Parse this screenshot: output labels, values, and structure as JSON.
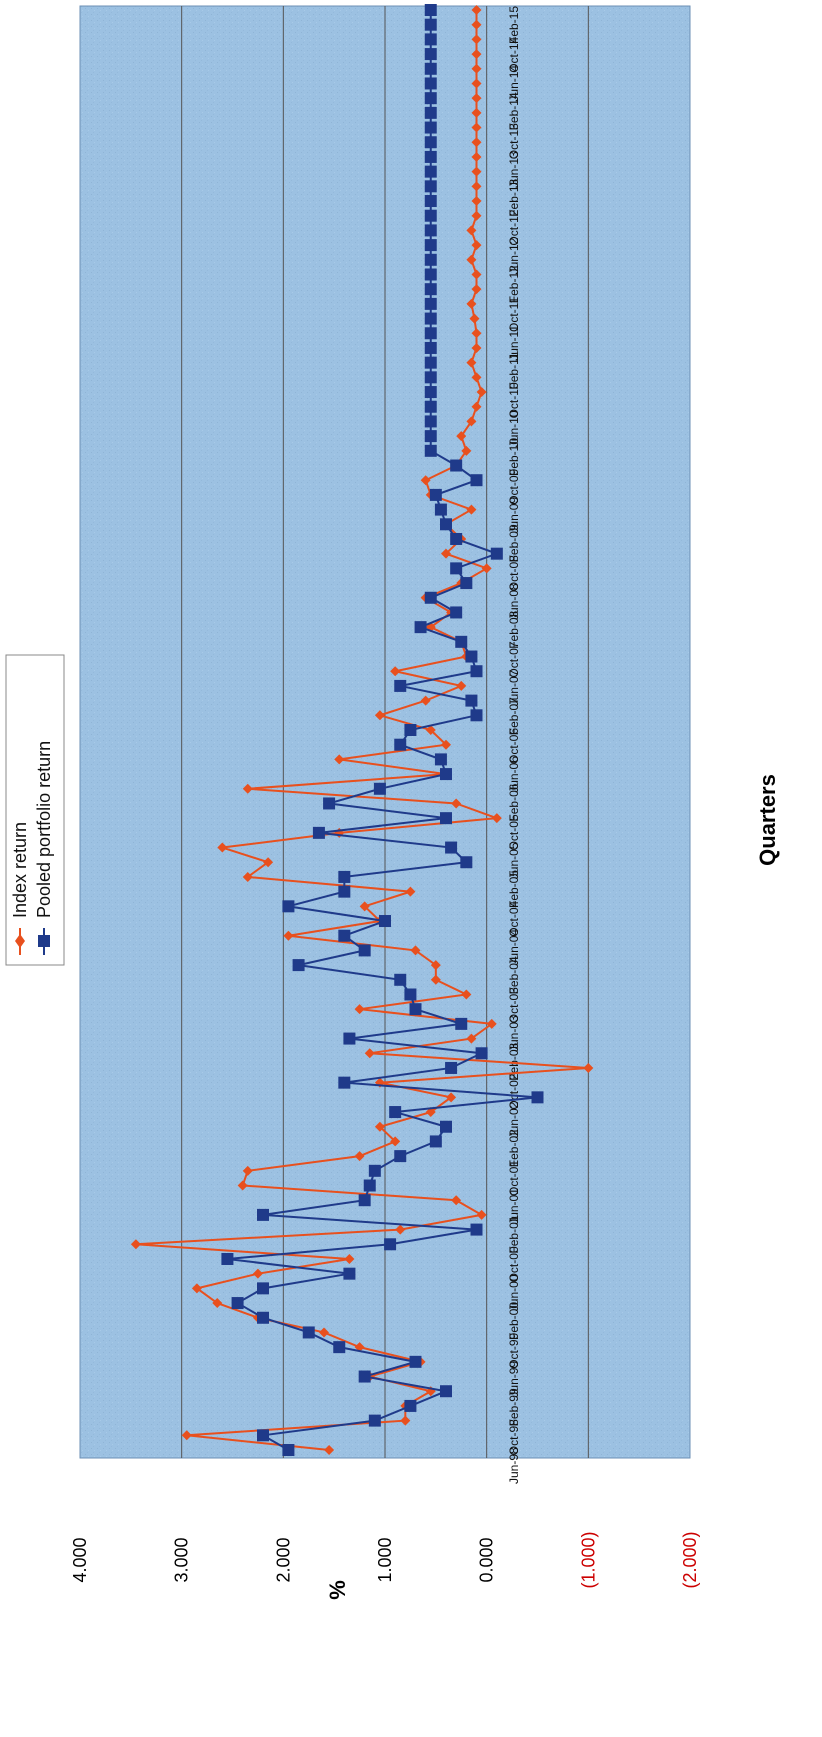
{
  "chart_data": {
    "type": "line",
    "orientation": "rotated 90° clockwise (value axis horizontal along bottom, quarters run top to bottom)",
    "xlabel": "Quarters",
    "ylabel": "%",
    "ylim": [
      -2.0,
      4.0
    ],
    "y_ticks": [
      "4.000",
      "3.000",
      "2.000",
      "1.000",
      "0.000",
      "(1.000)",
      "(2.000)"
    ],
    "grid": true,
    "legend_position": "top-left",
    "x_labels": [
      "Jun-98",
      "Oct-98",
      "Feb-99",
      "Jun-99",
      "Oct-99",
      "Feb-00",
      "Jun-00",
      "Oct-00",
      "Feb-01",
      "Jun-01",
      "Oct-01",
      "Feb-02",
      "Jun-02",
      "Oct-02",
      "Feb-03",
      "Jun-03",
      "Oct-03",
      "Feb-04",
      "Jun-04",
      "Oct-04",
      "Feb-05",
      "Jun-05",
      "Oct-05",
      "Feb-06",
      "Jun-06",
      "Oct-06",
      "Feb-07",
      "Jun-07",
      "Oct-07",
      "Feb-08",
      "Jun-08",
      "Oct-08",
      "Feb-09",
      "Jun-09",
      "Oct-09",
      "Feb-10",
      "Jun-10",
      "Oct-10",
      "Feb-11",
      "Jun-11",
      "Oct-11",
      "Feb-12",
      "Jun-12",
      "Oct-12",
      "Feb-13",
      "Jun-13",
      "Oct-13",
      "Feb-14",
      "Jun-14",
      "Oct-14",
      "Feb-15"
    ],
    "x": [
      0,
      2,
      4,
      5,
      6,
      8,
      9,
      10,
      11,
      12,
      13,
      14,
      15,
      16,
      17,
      18,
      19,
      20,
      21,
      22,
      23,
      24,
      25,
      26,
      27,
      28,
      29,
      30,
      31,
      32,
      33,
      34,
      35,
      36,
      37,
      38,
      39,
      40,
      41,
      42,
      43,
      44,
      45,
      46,
      47,
      48,
      49,
      50,
      51,
      52,
      53,
      54,
      55,
      56,
      57,
      58,
      59,
      60,
      61,
      62,
      63,
      64,
      65,
      66,
      67,
      68,
      69,
      70,
      71,
      72,
      73,
      74,
      75,
      76,
      77,
      78,
      79,
      80,
      81,
      82,
      83,
      84,
      85,
      86,
      87,
      88,
      89,
      90,
      91,
      92,
      93,
      94,
      95,
      96,
      97,
      98,
      99,
      100,
      101
    ],
    "series": [
      {
        "name": "Index return",
        "color": "#e8501e",
        "marker": "diamond",
        "values": [
          1.55,
          2.95,
          0.8,
          0.8,
          0.55,
          1.15,
          0.65,
          1.25,
          1.6,
          2.25,
          2.65,
          2.85,
          2.25,
          1.35,
          3.45,
          0.85,
          0.05,
          0.3,
          2.4,
          2.35,
          1.25,
          0.9,
          1.05,
          0.55,
          0.35,
          1.05,
          -1.0,
          1.15,
          0.15,
          -0.05,
          1.25,
          0.2,
          0.5,
          0.5,
          0.7,
          1.95,
          1.05,
          1.2,
          0.75,
          2.35,
          2.15,
          2.6,
          1.45,
          -0.1,
          0.3,
          2.35,
          0.4,
          1.45,
          0.4,
          0.55,
          1.05,
          0.6,
          0.25,
          0.9,
          0.2,
          0.25,
          0.55,
          0.35,
          0.6,
          0.25,
          0.0,
          0.4,
          0.25,
          0.4,
          0.15,
          0.55,
          0.6,
          0.3,
          0.2,
          0.25,
          0.15,
          0.1,
          0.05,
          0.1,
          0.15,
          0.1,
          0.1,
          0.12,
          0.15,
          0.1,
          0.1,
          0.15,
          0.1,
          0.15,
          0.1,
          0.1,
          0.1,
          0.1,
          0.1,
          0.1,
          0.1,
          0.1,
          0.1,
          0.1,
          0.1,
          0.1,
          0.1,
          0.1,
          0.1
        ]
      },
      {
        "name": "Pooled portfolio return",
        "color": "#1f3a8a",
        "marker": "square",
        "values": [
          1.95,
          2.2,
          1.1,
          0.75,
          0.4,
          1.2,
          0.7,
          1.45,
          1.75,
          2.2,
          2.45,
          2.2,
          1.35,
          2.55,
          0.95,
          0.1,
          2.2,
          1.2,
          1.15,
          1.1,
          0.85,
          0.5,
          0.4,
          0.9,
          -0.5,
          1.4,
          0.35,
          0.05,
          1.35,
          0.25,
          0.7,
          0.75,
          0.85,
          1.85,
          1.2,
          1.4,
          1.0,
          1.95,
          1.4,
          1.4,
          0.2,
          0.35,
          1.65,
          0.4,
          1.55,
          1.05,
          0.4,
          0.45,
          0.85,
          0.75,
          0.1,
          0.15,
          0.85,
          0.1,
          0.15,
          0.25,
          0.65,
          0.3,
          0.55,
          0.2,
          0.3,
          -0.1,
          0.3,
          0.4,
          0.45,
          0.5,
          0.1,
          0.3,
          0.55,
          0.55,
          0.55,
          0.55,
          0.55,
          0.55,
          0.55,
          0.55,
          0.55,
          0.55,
          0.55,
          0.55,
          0.55,
          0.55,
          0.55,
          0.55,
          0.55,
          0.55,
          0.55,
          0.55,
          0.55,
          0.55,
          0.55,
          0.55,
          0.55,
          0.55,
          0.55,
          0.55,
          0.55,
          0.55,
          0.55
        ]
      }
    ]
  }
}
